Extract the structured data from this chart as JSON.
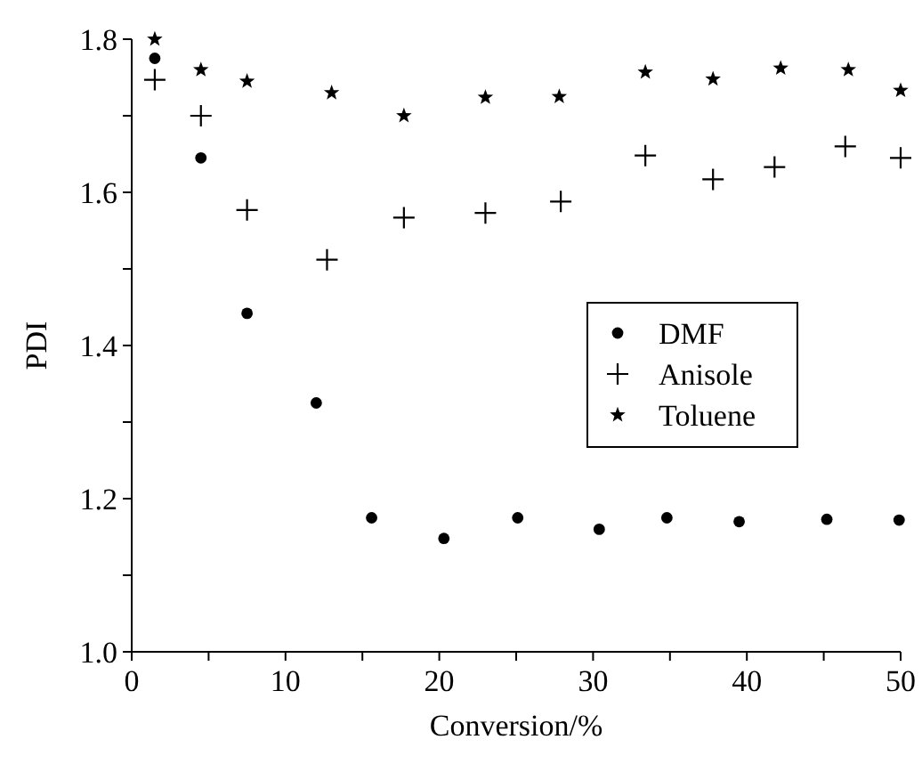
{
  "chart_data": {
    "type": "scatter",
    "xlabel": "Conversion/%",
    "ylabel": "PDI",
    "xlim": [
      0,
      50
    ],
    "ylim": [
      1.0,
      1.8
    ],
    "xticks": [
      0,
      {
        "value": 5,
        "label": null
      },
      10,
      {
        "value": 15,
        "label": null
      },
      20,
      {
        "value": 25,
        "label": null
      },
      30,
      {
        "value": 35,
        "label": null
      },
      40,
      {
        "value": 45,
        "label": null
      },
      50
    ],
    "yticks": [
      {
        "value": 1.0,
        "label": "1.0"
      },
      {
        "value": 1.1,
        "label": null
      },
      {
        "value": 1.2,
        "label": "1.2"
      },
      {
        "value": 1.3,
        "label": null
      },
      {
        "value": 1.4,
        "label": "1.4"
      },
      {
        "value": 1.5,
        "label": null
      },
      {
        "value": 1.6,
        "label": "1.6"
      },
      {
        "value": 1.7,
        "label": null
      },
      {
        "value": 1.8,
        "label": "1.8"
      }
    ],
    "grid": false,
    "legend": "right",
    "series": [
      {
        "name": "DMF",
        "color": "#000000",
        "marker": "circle",
        "x": [
          1.5,
          4.5,
          7.5,
          12,
          15.6,
          20.3,
          25.1,
          30.4,
          34.8,
          39.5,
          45.2,
          49.9
        ],
        "values": [
          1.775,
          1.645,
          1.442,
          1.325,
          1.175,
          1.148,
          1.175,
          1.16,
          1.175,
          1.17,
          1.173,
          1.172
        ]
      },
      {
        "name": "Anisole",
        "color": "#000000",
        "marker": "cross",
        "x": [
          1.5,
          4.5,
          7.5,
          12.7,
          17.7,
          23,
          27.9,
          33.4,
          37.8,
          41.8,
          46.4,
          50
        ],
        "values": [
          1.747,
          1.7,
          1.577,
          1.512,
          1.567,
          1.573,
          1.588,
          1.648,
          1.617,
          1.633,
          1.66,
          1.645
        ]
      },
      {
        "name": "Toluene",
        "color": "#000000",
        "marker": "star",
        "x": [
          1.5,
          4.5,
          7.5,
          13,
          17.7,
          23,
          27.8,
          33.4,
          37.8,
          42.2,
          46.6,
          50
        ],
        "values": [
          1.8,
          1.76,
          1.745,
          1.73,
          1.7,
          1.724,
          1.725,
          1.757,
          1.748,
          1.762,
          1.76,
          1.733
        ]
      }
    ]
  }
}
